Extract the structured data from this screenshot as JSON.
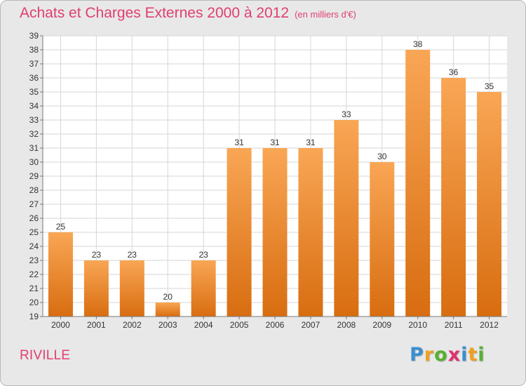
{
  "title": "Achats et Charges Externes 2000 à 2012",
  "unit": "(en milliers d'€)",
  "commune": "RIVILLE",
  "logo": {
    "letters": [
      "P",
      "r",
      "o",
      "x",
      "i",
      "t",
      "i"
    ],
    "colors": [
      "#3a8fd0",
      "#f0a020",
      "#58b030",
      "#e03070",
      "#3a8fd0",
      "#f0a020",
      "#58b030"
    ]
  },
  "colors": {
    "bar_top": "#f9a655",
    "bar_bottom": "#d86d10",
    "title": "#df3f6f",
    "background": "#e8e8e8"
  },
  "chart_data": {
    "type": "bar",
    "title": "Achats et Charges Externes 2000 à 2012",
    "categories": [
      "2000",
      "2001",
      "2002",
      "2003",
      "2004",
      "2005",
      "2006",
      "2007",
      "2008",
      "2009",
      "2010",
      "2011",
      "2012"
    ],
    "values": [
      25,
      23,
      23,
      20,
      23,
      31,
      31,
      31,
      33,
      30,
      38,
      36,
      35
    ],
    "ylim": [
      19,
      39
    ],
    "yticks": [
      19,
      20,
      21,
      22,
      23,
      24,
      25,
      26,
      27,
      28,
      29,
      30,
      31,
      32,
      33,
      34,
      35,
      36,
      37,
      38,
      39
    ],
    "xlabel": "",
    "ylabel": "",
    "grid": true
  }
}
